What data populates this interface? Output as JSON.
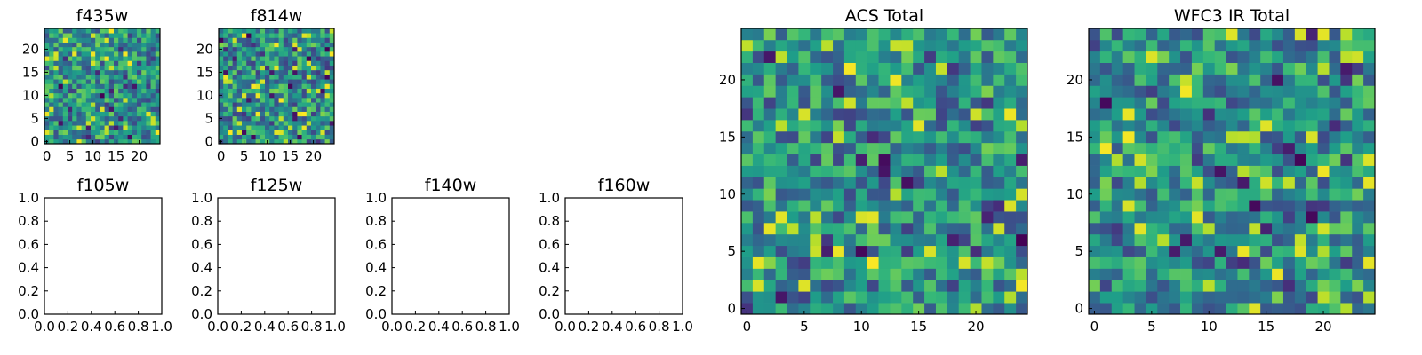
{
  "chart_data": [
    {
      "type": "heatmap",
      "title": "f435w",
      "grid_size": [
        25,
        25
      ],
      "colormap": "viridis",
      "xticks": [
        0,
        5,
        10,
        15,
        20
      ],
      "yticks": [
        0,
        5,
        10,
        15,
        20
      ],
      "xlim": [
        -0.5,
        24.5
      ],
      "ylim": [
        -0.5,
        24.5
      ],
      "seed": 11,
      "values": []
    },
    {
      "type": "heatmap",
      "title": "f814w",
      "grid_size": [
        25,
        25
      ],
      "colormap": "viridis",
      "xticks": [
        0,
        5,
        10,
        15,
        20
      ],
      "yticks": [
        0,
        5,
        10,
        15,
        20
      ],
      "xlim": [
        -0.5,
        24.5
      ],
      "ylim": [
        -0.5,
        24.5
      ],
      "seed": 23,
      "values": []
    },
    {
      "type": "empty",
      "title": "f105w",
      "xticks": [
        "0.0",
        "0.2",
        "0.4",
        "0.6",
        "0.8",
        "1.0"
      ],
      "yticks": [
        "0.0",
        "0.2",
        "0.4",
        "0.6",
        "0.8",
        "1.0"
      ],
      "xlim": [
        0,
        1
      ],
      "ylim": [
        0,
        1
      ]
    },
    {
      "type": "empty",
      "title": "f125w",
      "xticks": [
        "0.0",
        "0.2",
        "0.4",
        "0.6",
        "0.8",
        "1.0"
      ],
      "yticks": [
        "0.0",
        "0.2",
        "0.4",
        "0.6",
        "0.8",
        "1.0"
      ],
      "xlim": [
        0,
        1
      ],
      "ylim": [
        0,
        1
      ]
    },
    {
      "type": "empty",
      "title": "f140w",
      "xticks": [
        "0.0",
        "0.2",
        "0.4",
        "0.6",
        "0.8",
        "1.0"
      ],
      "yticks": [
        "0.0",
        "0.2",
        "0.4",
        "0.6",
        "0.8",
        "1.0"
      ],
      "xlim": [
        0,
        1
      ],
      "ylim": [
        0,
        1
      ]
    },
    {
      "type": "empty",
      "title": "f160w",
      "xticks": [
        "0.0",
        "0.2",
        "0.4",
        "0.6",
        "0.8",
        "1.0"
      ],
      "yticks": [
        "0.0",
        "0.2",
        "0.4",
        "0.6",
        "0.8",
        "1.0"
      ],
      "xlim": [
        0,
        1
      ],
      "ylim": [
        0,
        1
      ]
    },
    {
      "type": "heatmap",
      "title": "ACS Total",
      "grid_size": [
        25,
        25
      ],
      "colormap": "viridis",
      "xticks": [
        0,
        5,
        10,
        15,
        20
      ],
      "yticks": [
        0,
        5,
        10,
        15,
        20
      ],
      "xlim": [
        -0.5,
        24.5
      ],
      "ylim": [
        -0.5,
        24.5
      ],
      "seed": 37,
      "values": []
    },
    {
      "type": "heatmap",
      "title": "WFC3 IR Total",
      "grid_size": [
        25,
        25
      ],
      "colormap": "viridis",
      "xticks": [
        0,
        5,
        10,
        15,
        20
      ],
      "yticks": [
        0,
        5,
        10,
        15,
        20
      ],
      "xlim": [
        -0.5,
        24.5
      ],
      "ylim": [
        -0.5,
        24.5
      ],
      "seed": 53,
      "values": []
    }
  ]
}
